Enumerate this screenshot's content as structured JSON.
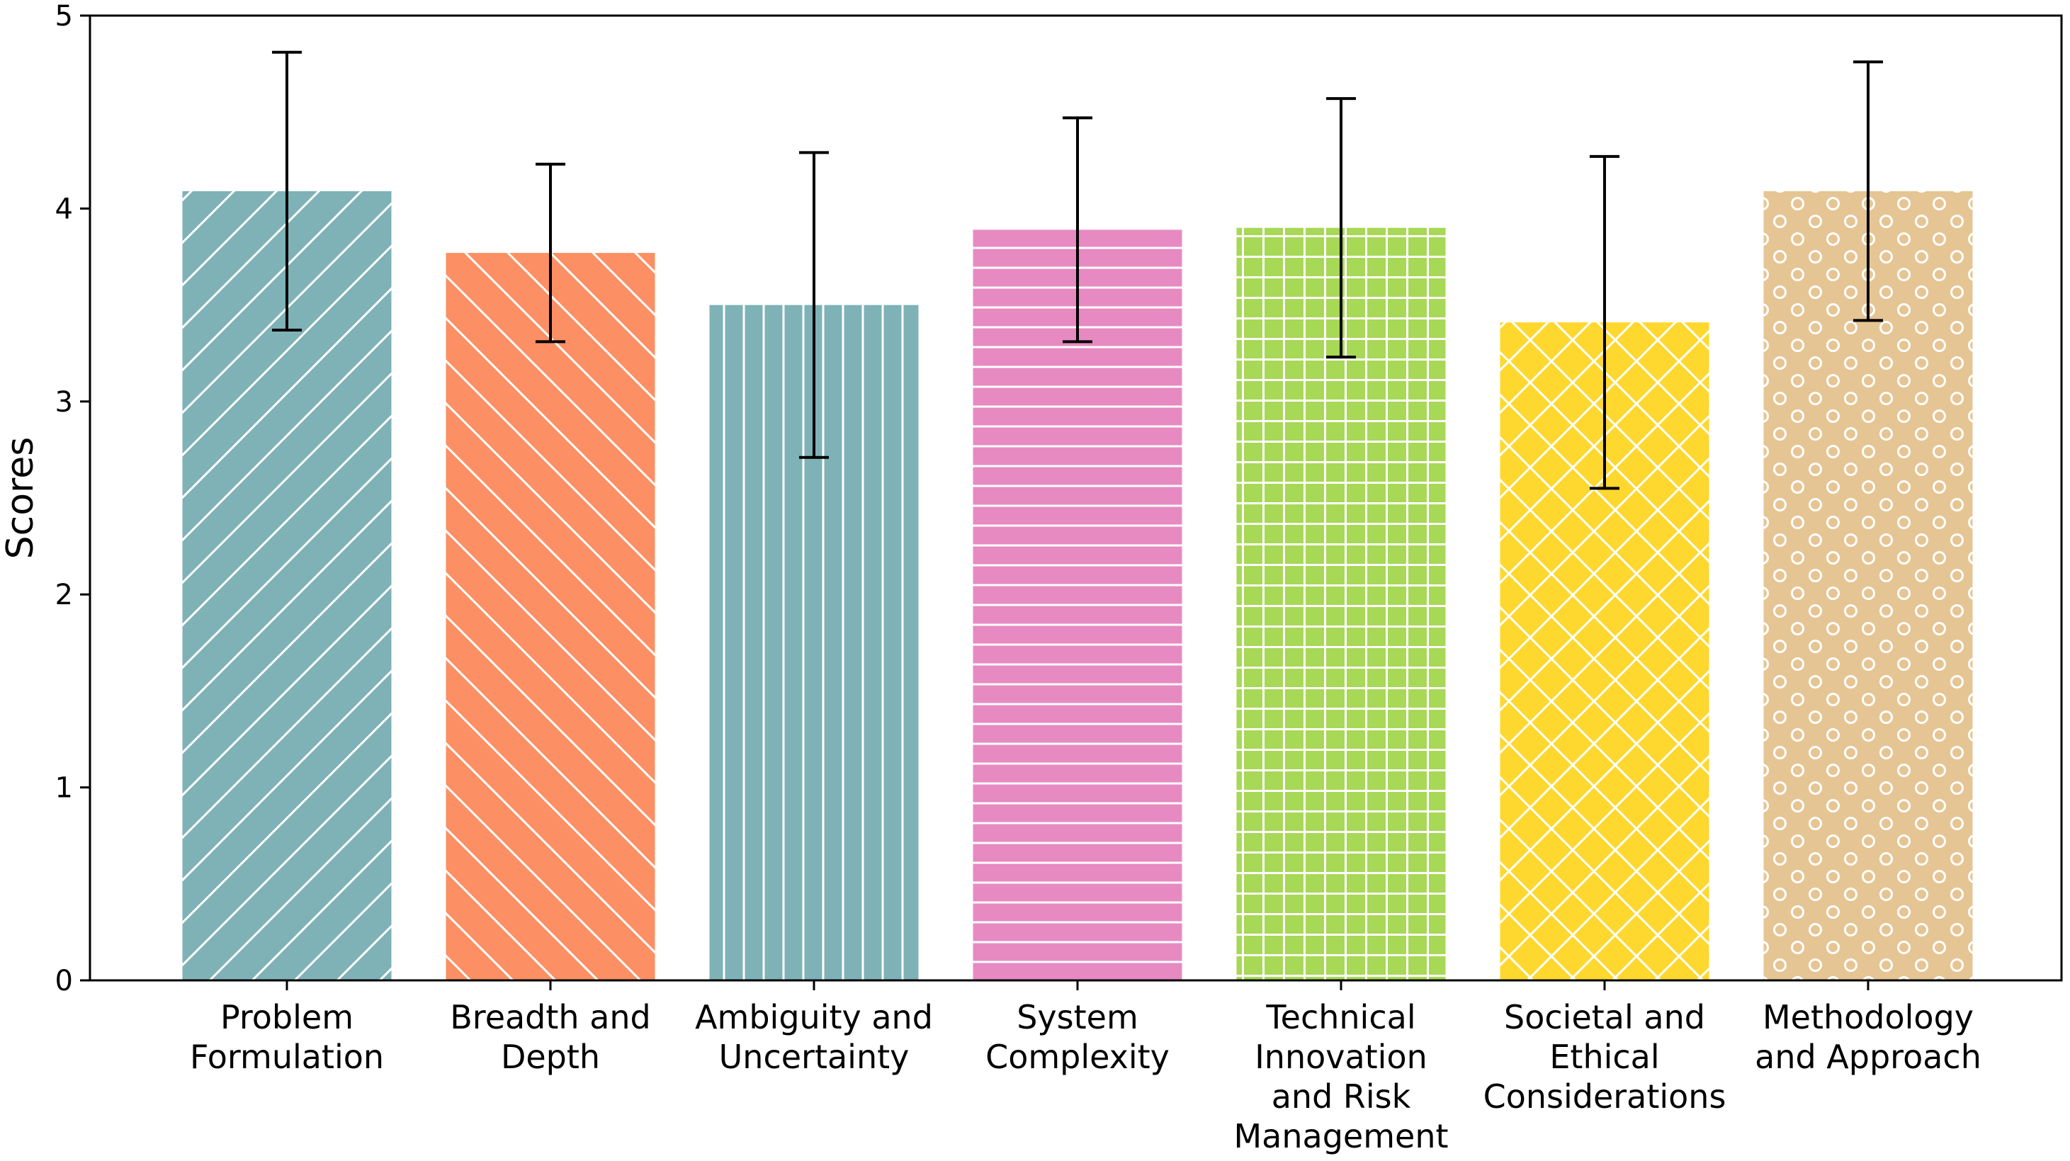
{
  "chart_data": {
    "type": "bar",
    "ylabel": "Scores",
    "xlabel": "",
    "ylim": [
      0,
      5
    ],
    "yticks": [
      "0",
      "1",
      "2",
      "3",
      "4",
      "5"
    ],
    "grid": false,
    "categories": [
      [
        "Problem",
        "Formulation"
      ],
      [
        "Breadth and",
        "Depth"
      ],
      [
        "Ambiguity and",
        "Uncertainty"
      ],
      [
        "System",
        "Complexity"
      ],
      [
        "Technical",
        "Innovation",
        "and Risk",
        "Management"
      ],
      [
        "Societal and",
        "Ethical",
        "Considerations"
      ],
      [
        "Methodology",
        "and Approach"
      ]
    ],
    "values": [
      4.09,
      3.77,
      3.5,
      3.89,
      3.9,
      3.41,
      4.09
    ],
    "errors": [
      0.72,
      0.46,
      0.79,
      0.58,
      0.67,
      0.86,
      0.67
    ],
    "bar_colors": [
      "#7eb2b7",
      "#fc8f64",
      "#7eb2b7",
      "#e78ac2",
      "#a7d856",
      "#fed82f",
      "#e6c594"
    ],
    "hatches": [
      "diagonal-up",
      "diagonal-down",
      "vertical",
      "horizontal",
      "grid",
      "crosshatch",
      "circles"
    ]
  }
}
